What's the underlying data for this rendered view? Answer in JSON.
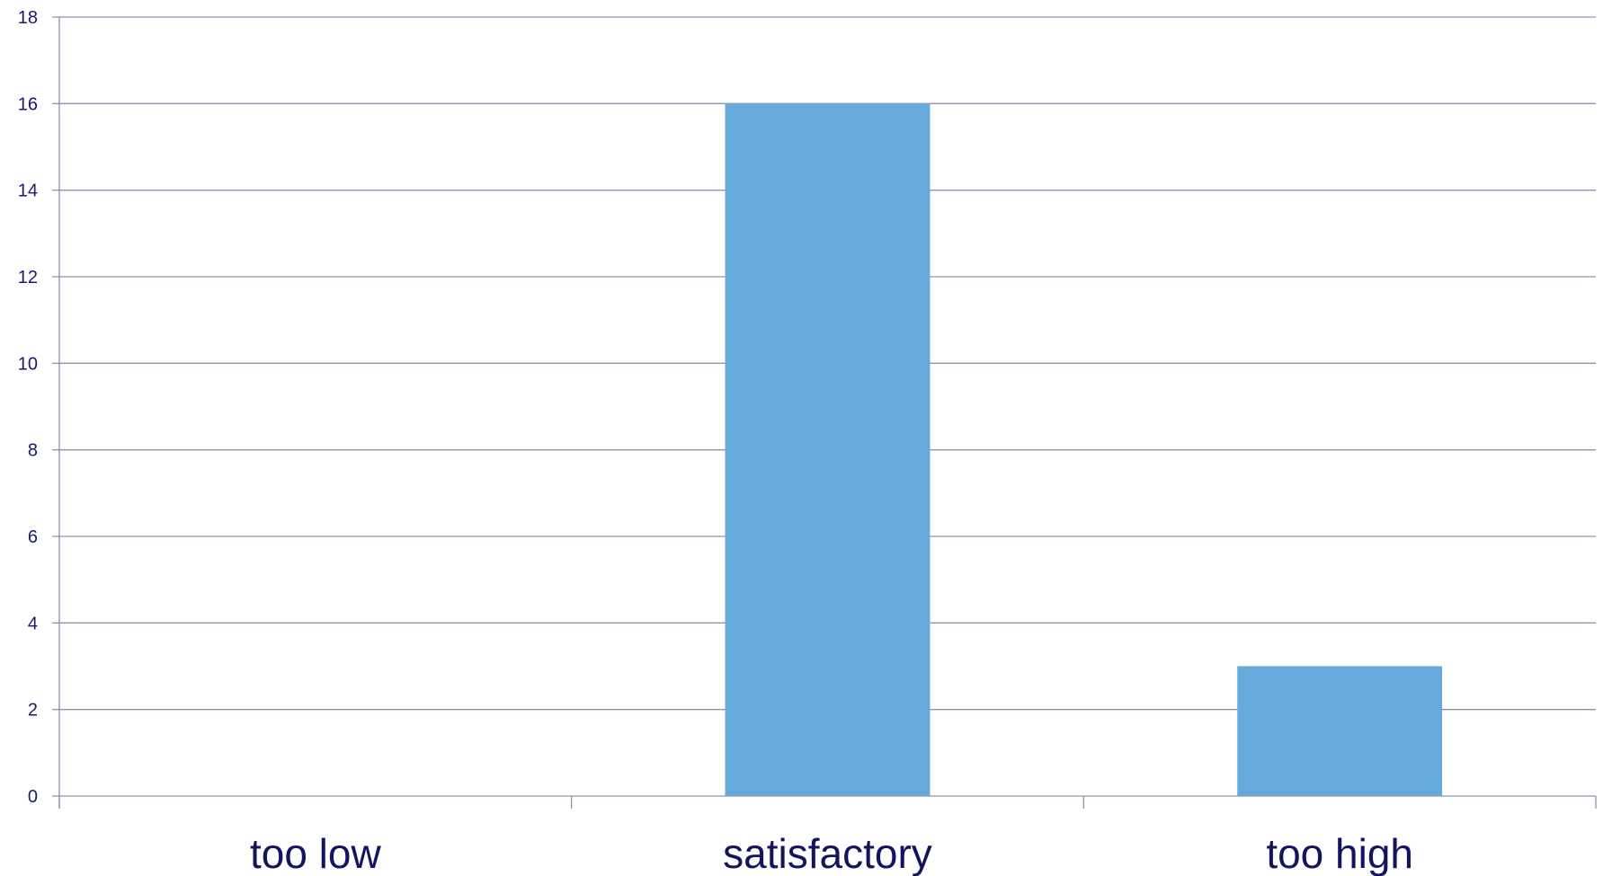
{
  "chart_data": {
    "type": "bar",
    "title": "",
    "xlabel": "",
    "ylabel": "",
    "categories": [
      "too low",
      "satisfactory",
      "too high"
    ],
    "values": [
      0,
      16,
      3
    ],
    "ylim": [
      0,
      18
    ],
    "yticks": [
      0,
      2,
      4,
      6,
      8,
      10,
      12,
      14,
      16,
      18
    ],
    "grid": true,
    "legend": "none",
    "colors": {
      "bar": "#66aadc",
      "gridline": "#8f93ad",
      "axis_text": "#1a1a66"
    }
  }
}
